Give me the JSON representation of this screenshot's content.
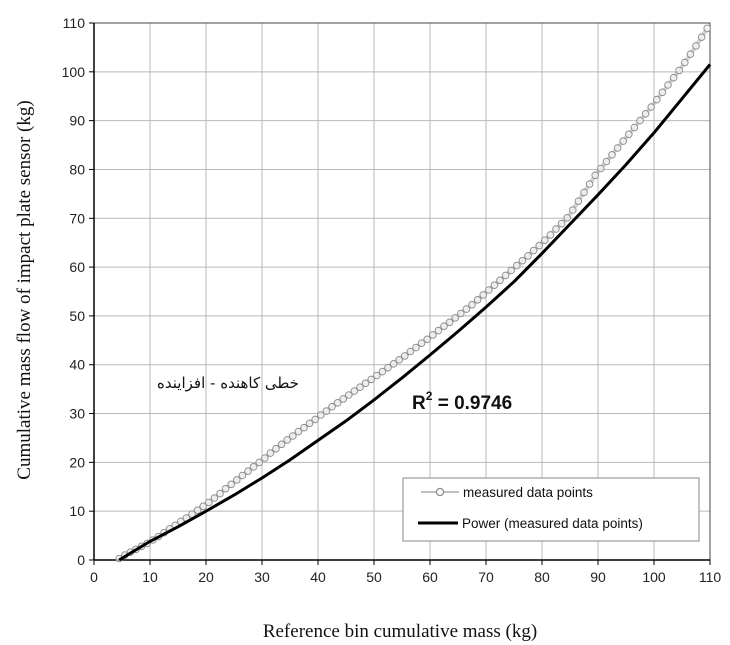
{
  "chart_data": {
    "type": "scatter",
    "xlabel": "Reference bin cumulative mass (kg)",
    "ylabel": "Cumulative mass flow of impact plate sensor (kg)",
    "xlim": [
      0,
      110
    ],
    "ylim": [
      0,
      110
    ],
    "xticks": [
      "0",
      "10",
      "20",
      "30",
      "40",
      "50",
      "60",
      "70",
      "80",
      "90",
      "100",
      "110"
    ],
    "yticks": [
      "0",
      "10",
      "20",
      "30",
      "40",
      "50",
      "60",
      "70",
      "80",
      "90",
      "100",
      "110"
    ],
    "grid": true,
    "legend_position": "bottom-right",
    "annotation_persian": "خطی کاهنده - افزاینده",
    "annotation_r2_label": "R",
    "annotation_r2_sup": "2",
    "annotation_r2_value": " = 0.9746",
    "series": [
      {
        "name": "measured data points",
        "marker": "circle",
        "color": "#9a9a9a",
        "x": [
          4.5,
          5.5,
          6.5,
          7.5,
          8.5,
          9.5,
          10.5,
          11.5,
          12.5,
          13.5,
          14.5,
          15.5,
          16.5,
          17.5,
          18.5,
          19.5,
          20.5,
          21.5,
          22.5,
          23.5,
          24.5,
          25.5,
          26.5,
          27.5,
          28.5,
          29.5,
          30.5,
          31.5,
          32.5,
          33.5,
          34.5,
          35.5,
          36.5,
          37.5,
          38.5,
          39.5,
          40.5,
          41.5,
          42.5,
          43.5,
          44.5,
          45.5,
          46.5,
          47.5,
          48.5,
          49.5,
          50.5,
          51.5,
          52.5,
          53.5,
          54.5,
          55.5,
          56.5,
          57.5,
          58.5,
          59.5,
          60.5,
          61.5,
          62.5,
          63.5,
          64.5,
          65.5,
          66.5,
          67.5,
          68.5,
          69.5,
          70.5,
          71.5,
          72.5,
          73.5,
          74.5,
          75.5,
          76.5,
          77.5,
          78.5,
          79.5,
          80.5,
          81.5,
          82.5,
          83.5,
          84.5,
          85.5,
          86.5,
          87.5,
          88.5,
          89.5,
          90.5,
          91.5,
          92.5,
          93.5,
          94.5,
          95.5,
          96.5,
          97.5,
          98.5,
          99.5,
          100.5,
          101.5,
          102.5,
          103.5,
          104.5,
          105.5,
          106.5,
          107.5,
          108.5,
          109.5
        ],
        "y": [
          0.3,
          1.0,
          1.6,
          2.2,
          2.8,
          3.4,
          4.1,
          4.8,
          5.6,
          6.4,
          7.1,
          7.9,
          8.6,
          9.4,
          10.2,
          11.0,
          11.8,
          12.7,
          13.6,
          14.6,
          15.5,
          16.4,
          17.3,
          18.2,
          19.1,
          20.0,
          20.9,
          21.9,
          22.8,
          23.7,
          24.6,
          25.4,
          26.3,
          27.1,
          28.0,
          28.8,
          29.7,
          30.5,
          31.4,
          32.2,
          33.0,
          33.8,
          34.6,
          35.4,
          36.2,
          37.0,
          37.8,
          38.6,
          39.4,
          40.2,
          41.0,
          41.8,
          42.7,
          43.5,
          44.4,
          45.2,
          46.1,
          47.0,
          47.9,
          48.7,
          49.6,
          50.5,
          51.4,
          52.3,
          53.3,
          54.3,
          55.3,
          56.3,
          57.3,
          58.3,
          59.3,
          60.3,
          61.3,
          62.3,
          63.4,
          64.4,
          65.5,
          66.6,
          67.8,
          68.9,
          70.1,
          71.7,
          73.5,
          75.3,
          77.0,
          78.8,
          80.2,
          81.6,
          83.0,
          84.4,
          85.8,
          87.2,
          88.6,
          90.0,
          91.4,
          92.8,
          94.3,
          95.8,
          97.3,
          98.8,
          100.3,
          101.9,
          103.6,
          105.3,
          107.1,
          108.9
        ]
      },
      {
        "name": "Power (measured data points)",
        "type": "line",
        "color": "#000000",
        "x": [
          4.5,
          10,
          15,
          20,
          25,
          30,
          35,
          40,
          45,
          50,
          55,
          60,
          65,
          70,
          75,
          80,
          85,
          90,
          95,
          100,
          105,
          110
        ],
        "y": [
          0,
          3.8,
          6.8,
          10.0,
          13.3,
          16.8,
          20.5,
          24.5,
          28.5,
          32.8,
          37.3,
          42.0,
          46.8,
          51.8,
          57.0,
          62.8,
          68.8,
          74.8,
          81.0,
          87.5,
          94.5,
          101.5
        ]
      }
    ]
  }
}
